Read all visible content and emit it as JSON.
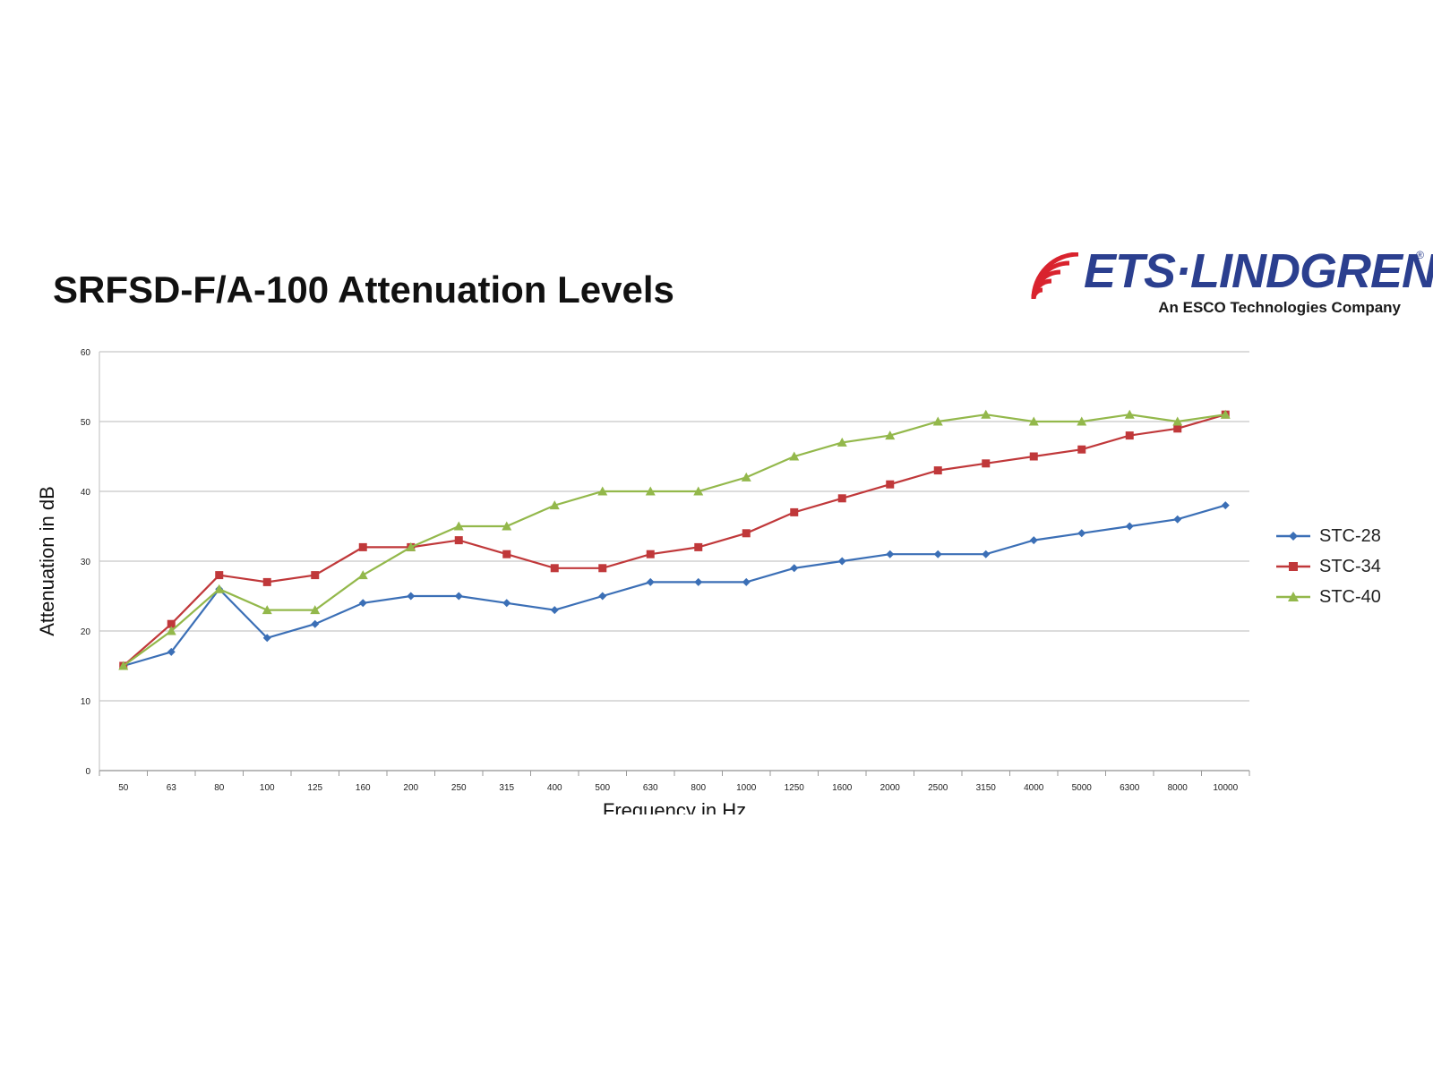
{
  "title": "SRFSD-F/A-100 Attenuation Levels",
  "logo": {
    "brand": "ETS·LINDGREN",
    "registered_mark": "®",
    "tagline": "An ESCO Technologies Company",
    "colors": {
      "waves": "#d9232e",
      "text": "#2b3f8f"
    }
  },
  "chart_data": {
    "type": "line",
    "title": "",
    "xlabel": "Frequency in Hz",
    "ylabel": "Attenuation in dB",
    "ylim": [
      0,
      60
    ],
    "yticks": [
      0,
      10,
      20,
      30,
      40,
      50,
      60
    ],
    "grid": "horizontal",
    "legend_position": "right",
    "categories": [
      "50",
      "63",
      "80",
      "100",
      "125",
      "160",
      "200",
      "250",
      "315",
      "400",
      "500",
      "630",
      "800",
      "1000",
      "1250",
      "1600",
      "2000",
      "2500",
      "3150",
      "4000",
      "5000",
      "6300",
      "8000",
      "10000"
    ],
    "series": [
      {
        "name": "STC-28",
        "color": "#3b6fb6",
        "marker": "diamond",
        "values": [
          15,
          17,
          26,
          19,
          21,
          24,
          25,
          25,
          24,
          23,
          25,
          27,
          27,
          27,
          29,
          30,
          31,
          31,
          31,
          33,
          34,
          35,
          36,
          38
        ]
      },
      {
        "name": "STC-34",
        "color": "#c0383a",
        "marker": "square",
        "values": [
          15,
          21,
          28,
          27,
          28,
          32,
          32,
          33,
          31,
          29,
          29,
          31,
          32,
          34,
          37,
          39,
          41,
          43,
          44,
          45,
          46,
          48,
          49,
          51
        ]
      },
      {
        "name": "STC-40",
        "color": "#93b84b",
        "marker": "triangle",
        "values": [
          15,
          20,
          26,
          23,
          23,
          28,
          32,
          35,
          35,
          38,
          40,
          40,
          40,
          42,
          45,
          47,
          48,
          50,
          51,
          50,
          50,
          51,
          50,
          51
        ]
      }
    ]
  }
}
